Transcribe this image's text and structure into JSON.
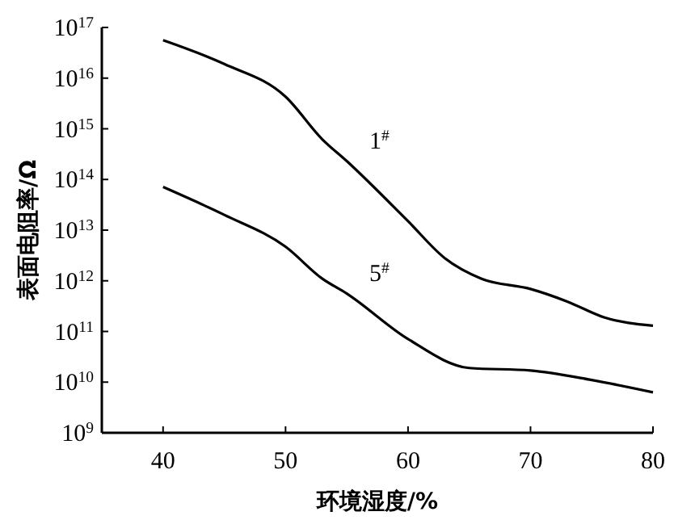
{
  "chart_data": {
    "type": "line",
    "xlabel": "环境湿度/%",
    "ylabel": "表面电阻率/Ω",
    "log": "y",
    "xlim": [
      35,
      80
    ],
    "ylim": [
      1000000000.0,
      1e+17
    ],
    "xticks": [
      40,
      50,
      60,
      70,
      80
    ],
    "yticks": [
      {
        "value": 1000000000.0,
        "label": "10$^{9}$"
      },
      {
        "value": 10000000000.0,
        "label": "10$^{10}$"
      },
      {
        "value": 100000000000.0,
        "label": "10$^{11}$"
      },
      {
        "value": 1000000000000.0,
        "label": "10$^{12}$"
      },
      {
        "value": 10000000000000.0,
        "label": "10$^{13}$"
      },
      {
        "value": 100000000000000.0,
        "label": "10$^{14}$"
      },
      {
        "value": 1000000000000000.0,
        "label": "10$^{15}$"
      },
      {
        "value": 1e+16,
        "label": "10$^{16}$"
      },
      {
        "value": 1e+17,
        "label": "10$^{17}$"
      }
    ],
    "grid": false,
    "marker": "none",
    "line_style": "solid",
    "x": [
      40,
      45,
      50,
      53,
      55,
      60,
      63,
      66,
      70,
      73,
      76,
      80
    ],
    "series": [
      {
        "name": "1$^{#}$",
        "color": "#000000",
        "values": [
          5.6e+16,
          1.9e+16,
          4300000000000000.0,
          620000000000000.0,
          230000000000000.0,
          15000000000000.0,
          2800000000000.0,
          1100000000000.0,
          690000000000.0,
          390000000000.0,
          190000000000.0,
          130000000000.0
        ]
      },
      {
        "name": "5$^{#}$",
        "color": "#000000",
        "x": [
          40,
          45,
          50,
          53,
          55,
          60,
          65,
          70,
          75,
          80
        ],
        "values": [
          71000000000000.0,
          20000000000000.0,
          4700000000000.0,
          1100000000000.0,
          560000000000.0,
          71000000000.0,
          19000000000.0,
          17000000000.0,
          11000000000.0,
          6300000000.0
        ]
      }
    ]
  }
}
